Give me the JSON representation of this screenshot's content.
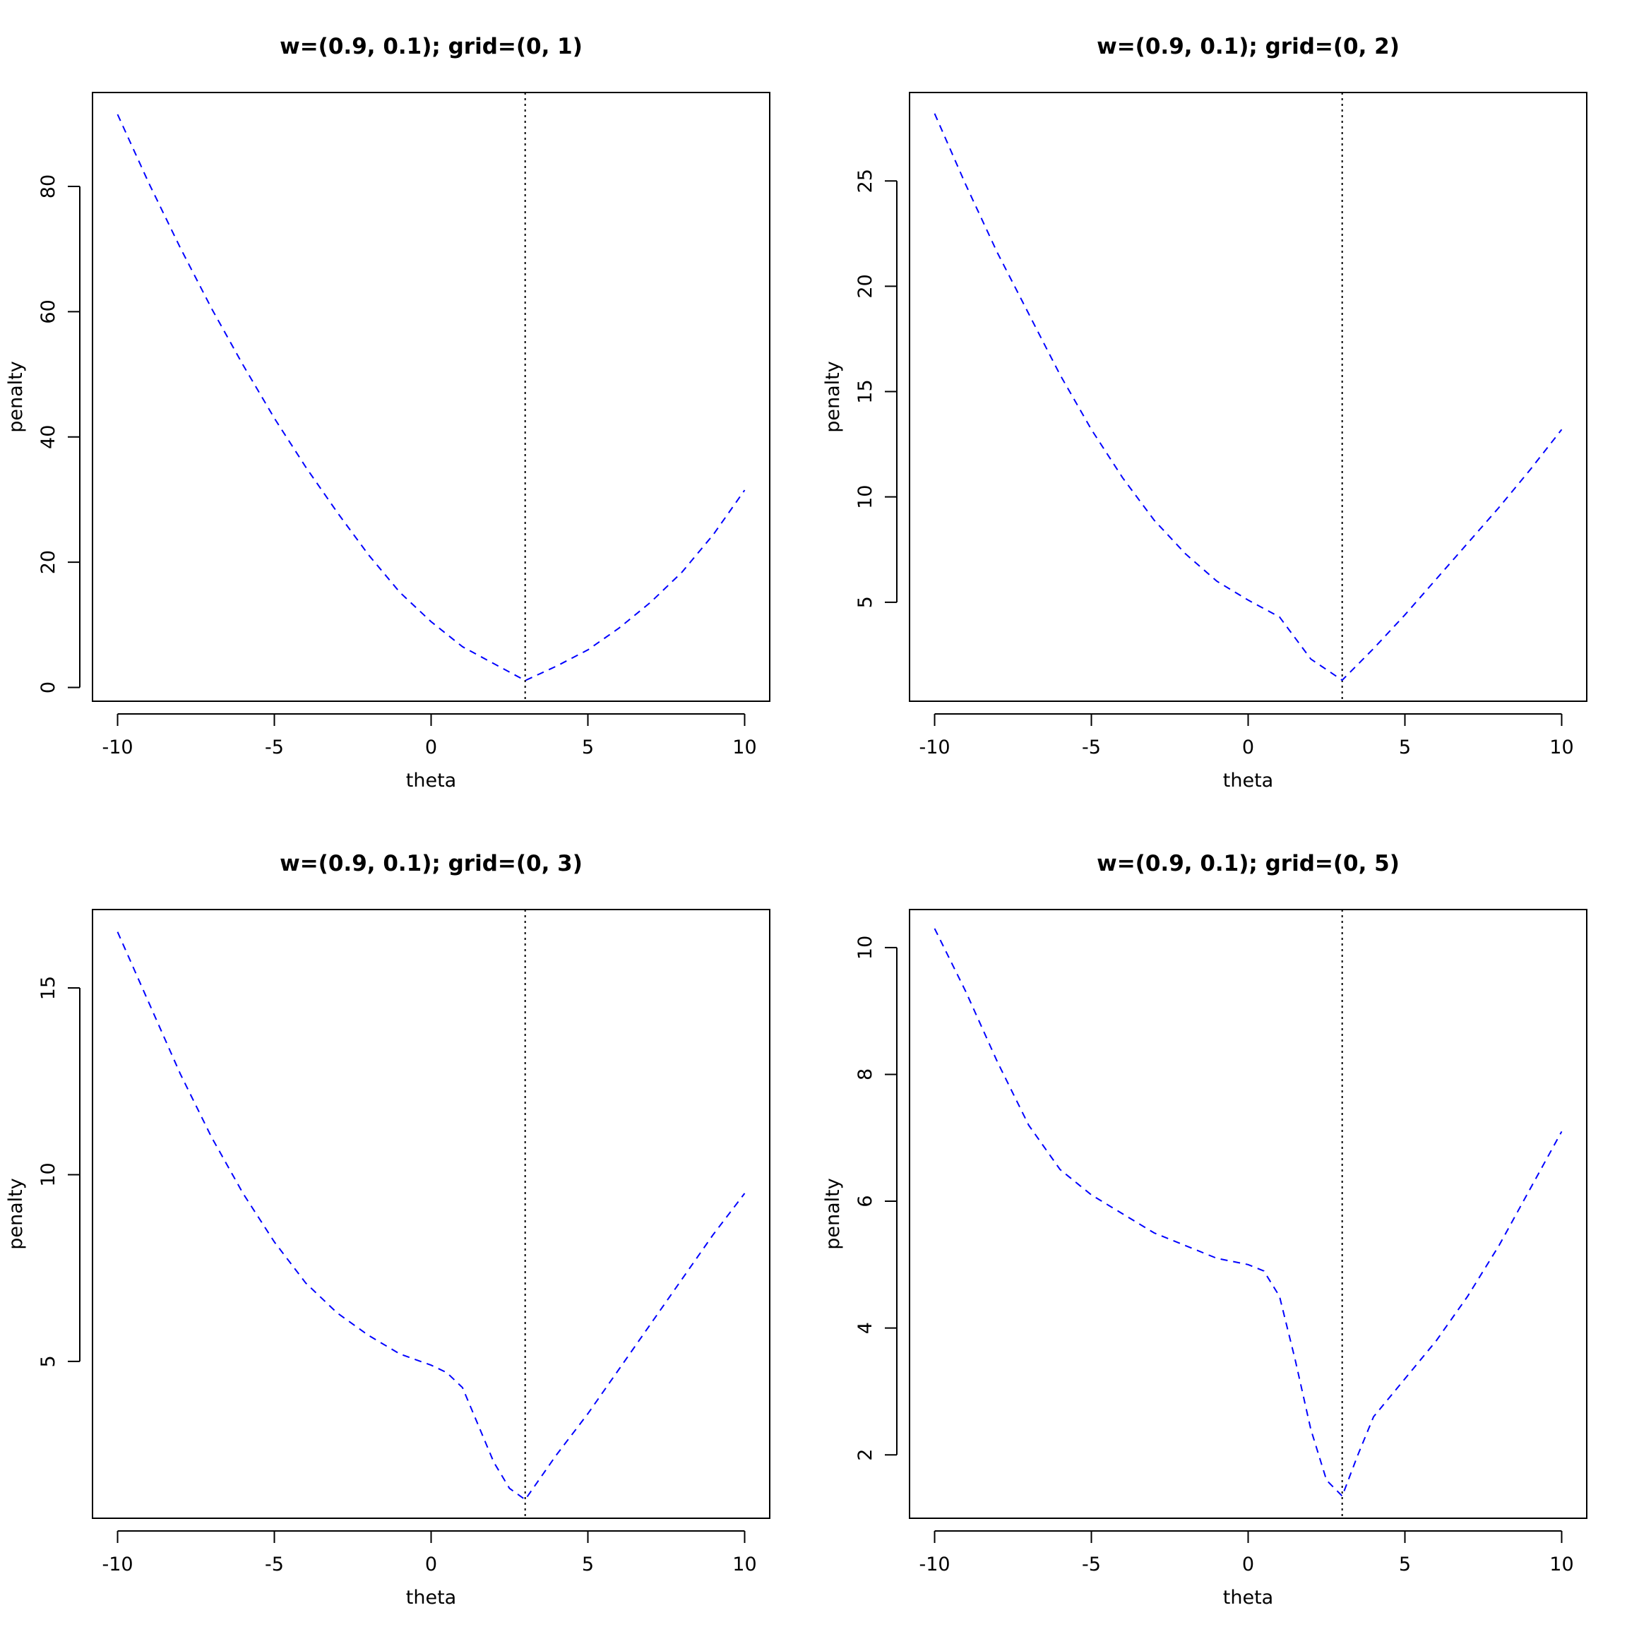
{
  "chart_data": [
    {
      "type": "line",
      "title": "w=(0.9, 0.1); grid=(0, 1)",
      "xlabel": "theta",
      "ylabel": "penalty",
      "xlim": [
        -10.8,
        10.8
      ],
      "ylim": [
        -2.2,
        95
      ],
      "xticks": [
        -10,
        -5,
        0,
        5,
        10
      ],
      "yticks": [
        0,
        20,
        40,
        60,
        80
      ],
      "grid": false,
      "vline": {
        "x": 3,
        "style": "dotted",
        "color": "#000000"
      },
      "series": [
        {
          "color": "#0000ff",
          "style": "dashed",
          "x": [
            -10,
            -9,
            -8,
            -7,
            -6,
            -5,
            -4,
            -3,
            -2,
            -1,
            0,
            1,
            2,
            3,
            4,
            5,
            6,
            7,
            8,
            9,
            10
          ],
          "y": [
            91.5,
            80.5,
            70.2,
            60.5,
            51.5,
            43,
            35.2,
            28,
            21.2,
            15.2,
            10.5,
            6.5,
            3.8,
            1.1,
            3.4,
            6,
            9.5,
            13.6,
            18.4,
            24.4,
            31.5
          ]
        }
      ]
    },
    {
      "type": "line",
      "title": "w=(0.9, 0.1); grid=(0, 2)",
      "xlabel": "theta",
      "ylabel": "penalty",
      "xlim": [
        -10.8,
        10.8
      ],
      "ylim": [
        0.3,
        29.2
      ],
      "xticks": [
        -10,
        -5,
        0,
        5,
        10
      ],
      "yticks": [
        5,
        10,
        15,
        20,
        25
      ],
      "grid": false,
      "vline": {
        "x": 3,
        "style": "dotted",
        "color": "#000000"
      },
      "series": [
        {
          "color": "#0000ff",
          "style": "dashed",
          "x": [
            -10,
            -9,
            -8,
            -7,
            -6,
            -5,
            -4,
            -3,
            -2,
            -1,
            0,
            1,
            2,
            3,
            4,
            5,
            6,
            7,
            8,
            9,
            10
          ],
          "y": [
            28.2,
            24.8,
            21.6,
            18.7,
            15.8,
            13.2,
            10.9,
            8.9,
            7.3,
            6,
            5.1,
            4.3,
            2.3,
            1.3,
            2.8,
            4.4,
            6.1,
            7.8,
            9.5,
            11.3,
            13.2
          ]
        }
      ]
    },
    {
      "type": "line",
      "title": "w=(0.9, 0.1); grid=(0, 3)",
      "xlabel": "theta",
      "ylabel": "penalty",
      "xlim": [
        -10.8,
        10.8
      ],
      "ylim": [
        0.8,
        17.1
      ],
      "xticks": [
        -10,
        -5,
        0,
        5,
        10
      ],
      "yticks": [
        5,
        10,
        15
      ],
      "grid": false,
      "vline": {
        "x": 3,
        "style": "dotted",
        "color": "#000000"
      },
      "series": [
        {
          "color": "#0000ff",
          "style": "dashed",
          "x": [
            -10,
            -9,
            -8,
            -7,
            -6,
            -5,
            -4,
            -3,
            -2,
            -1,
            0,
            0.5,
            1,
            1.5,
            2,
            2.5,
            3,
            4,
            5,
            6,
            7,
            8,
            9,
            10
          ],
          "y": [
            16.5,
            14.6,
            12.7,
            11,
            9.5,
            8.2,
            7.1,
            6.3,
            5.7,
            5.2,
            4.9,
            4.7,
            4.3,
            3.3,
            2.3,
            1.6,
            1.3,
            2.5,
            3.6,
            4.8,
            6,
            7.2,
            8.4,
            9.5
          ]
        }
      ]
    },
    {
      "type": "line",
      "title": "w=(0.9, 0.1); grid=(0, 5)",
      "xlabel": "theta",
      "ylabel": "penalty",
      "xlim": [
        -10.8,
        10.8
      ],
      "ylim": [
        1.0,
        10.6
      ],
      "xticks": [
        -10,
        -5,
        0,
        5,
        10
      ],
      "yticks": [
        2,
        4,
        6,
        8,
        10
      ],
      "grid": false,
      "vline": {
        "x": 3,
        "style": "dotted",
        "color": "#000000"
      },
      "series": [
        {
          "color": "#0000ff",
          "style": "dashed",
          "x": [
            -10,
            -9,
            -8,
            -7,
            -6,
            -5,
            -4,
            -3,
            -2,
            -1,
            0,
            0.5,
            1,
            1.5,
            2,
            2.5,
            3,
            3.5,
            4,
            5,
            6,
            7,
            8,
            9,
            10
          ],
          "y": [
            10.3,
            9.3,
            8.2,
            7.2,
            6.5,
            6.1,
            5.8,
            5.5,
            5.3,
            5.1,
            5.0,
            4.9,
            4.5,
            3.5,
            2.4,
            1.6,
            1.35,
            2.0,
            2.6,
            3.2,
            3.8,
            4.5,
            5.3,
            6.2,
            7.1
          ]
        }
      ]
    }
  ]
}
